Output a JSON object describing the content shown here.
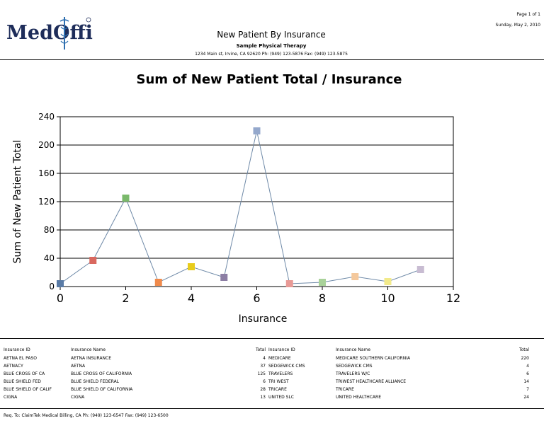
{
  "header": {
    "logo_text": "MedOffice",
    "page_label": "Page 1 of 1",
    "date": "Sunday, May 2, 2010",
    "title": "New Patient By Insurance",
    "practice": "Sample Physical Therapy",
    "address": "1234 Main st, Irvine, CA 92620 Ph: (949) 123-5876 Fax: (949) 123-5875"
  },
  "colors": {
    "line": "#6f8aa8",
    "grid": "#000000"
  },
  "chart_data": {
    "type": "line",
    "title": "Sum of New Patient Total / Insurance",
    "xlabel": "Insurance",
    "ylabel": "Sum of New Patient Total",
    "xlim": [
      0,
      12
    ],
    "ylim": [
      0,
      240
    ],
    "x_ticks": [
      0,
      2,
      4,
      6,
      8,
      10,
      12
    ],
    "y_ticks": [
      0,
      40,
      80,
      120,
      160,
      200,
      240
    ],
    "grid": "horizontal",
    "x": [
      0,
      1,
      2,
      3,
      4,
      5,
      6,
      7,
      8,
      9,
      10,
      11
    ],
    "values": [
      4,
      37,
      125,
      6,
      28,
      13,
      220,
      4,
      6,
      14,
      7,
      24
    ],
    "marker_colors": [
      "#5a7ba6",
      "#d9685f",
      "#7ab96b",
      "#f08a4b",
      "#e8cc1c",
      "#8c7ea4",
      "#94a8cc",
      "#e89a96",
      "#a9d29a",
      "#f4c89c",
      "#f2ea8a",
      "#c8bcd2"
    ]
  },
  "table": {
    "headers": {
      "id": "Insurance ID",
      "name": "Insurance Name",
      "total": "Total"
    },
    "left_rows": [
      {
        "id": "AETNA EL PASO",
        "name": "AETNA INSURANCE",
        "total": "4"
      },
      {
        "id": "AETNACY",
        "name": "AETNA",
        "total": "37"
      },
      {
        "id": "BLUE CROSS OF CA",
        "name": "BLUE CROSS OF CALIFORNIA",
        "total": "125"
      },
      {
        "id": "BLUE SHIELD FED",
        "name": "BLUE SHIELD FEDERAL",
        "total": "6"
      },
      {
        "id": "BLUE SHIELD OF CALIF",
        "name": "BLUE SHIELD OF CALIFORNIA",
        "total": "28"
      },
      {
        "id": "CIGNA",
        "name": "CIGNA",
        "total": "13"
      }
    ],
    "right_rows": [
      {
        "id": "MEDICARE",
        "name": "MEDICARE SOUTHERN CALIFORNIA",
        "total": "220"
      },
      {
        "id": "SEDGEWICK CMS",
        "name": "SEDGEWICK CMS",
        "total": "4"
      },
      {
        "id": "TRAVELERS",
        "name": "TRAVELERS W/C",
        "total": "6"
      },
      {
        "id": "TRI WEST",
        "name": "TRIWEST HEALTHCARE ALLIANCE",
        "total": "14"
      },
      {
        "id": "TRICARE",
        "name": "TRICARE",
        "total": "7"
      },
      {
        "id": "UNITED SLC",
        "name": "UNITED HEALTHCARE",
        "total": "24"
      }
    ]
  },
  "footer": {
    "text": "Req. To: ClaimTek Medical Billing, CA Ph: (949) 123-6547 Fax: (949) 123-6500"
  }
}
